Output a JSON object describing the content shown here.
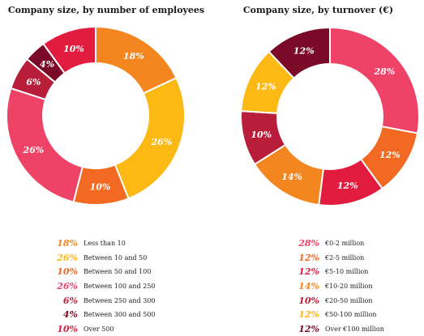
{
  "chart_data": [
    {
      "type": "pie",
      "title": "Company size, by number of employees",
      "categories": [
        "Less than 10",
        "Between 10 and 50",
        "Between 50 and 100",
        "Between 100 and 250",
        "Between 250 and 300",
        "Between 300 and 500",
        "Over 500"
      ],
      "values": [
        18,
        26,
        10,
        26,
        6,
        4,
        10
      ],
      "labels": [
        "18%",
        "26%",
        "10%",
        "26%",
        "6%",
        "4%",
        "10%"
      ],
      "colors": [
        "#F3861F",
        "#FDB913",
        "#F26A21",
        "#EE4266",
        "#B81E3A",
        "#7A0A27",
        "#E11C3F"
      ],
      "legend_position": "bottom"
    },
    {
      "type": "pie",
      "title": "Company size, by turnover (€)",
      "categories": [
        "€0-2 million",
        "€2-5 million",
        "€5-10 million",
        "€10-20 million",
        "€20-50 million",
        "€50-100 million",
        "Over €100 million"
      ],
      "values": [
        28,
        12,
        12,
        14,
        10,
        12,
        12
      ],
      "labels": [
        "28%",
        "12%",
        "12%",
        "14%",
        "10%",
        "12%",
        "12%"
      ],
      "colors": [
        "#EE4266",
        "#F26A21",
        "#E11C3F",
        "#F3861F",
        "#B81E3A",
        "#FDB913",
        "#7A0A27"
      ],
      "legend_position": "bottom"
    }
  ]
}
